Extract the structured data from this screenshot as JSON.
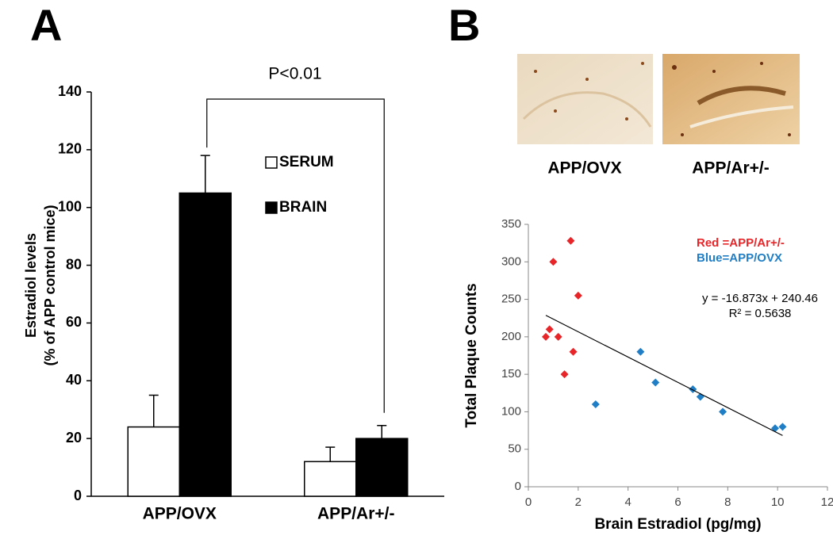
{
  "chart_data": [
    {
      "type": "bar",
      "panel": "A",
      "ylabel": [
        "Estradiol levels",
        "(% of APP control mice)"
      ],
      "categories": [
        "APP/OVX",
        "APP/Ar+/-"
      ],
      "series": [
        {
          "name": "SERUM",
          "color": "#ffffff",
          "values": [
            24,
            12
          ],
          "errors": [
            11,
            5
          ]
        },
        {
          "name": "BRAIN",
          "color": "#000000",
          "values": [
            105,
            20
          ],
          "errors": [
            13,
            4.5
          ]
        }
      ],
      "ylim": [
        0,
        140
      ],
      "yticks": [
        0,
        20,
        40,
        60,
        80,
        100,
        120,
        140
      ],
      "annotation": "P<0.01"
    },
    {
      "type": "scatter",
      "panel": "B",
      "image_labels": [
        "APP/OVX",
        "APP/Ar+/-"
      ],
      "xlabel": "Brain Estradiol (pg/mg)",
      "ylabel": "Total Plaque Counts",
      "series": [
        {
          "name": "Red =APP/Ar+/-",
          "color": "#e8262a",
          "x": [
            0.7,
            0.85,
            1.0,
            1.2,
            1.45,
            1.7,
            1.8,
            2.0
          ],
          "values": [
            200,
            210,
            300,
            200,
            150,
            328,
            180,
            255
          ]
        },
        {
          "name": "Blue=APP/OVX",
          "color": "#1f7ec6",
          "x": [
            2.7,
            4.5,
            5.1,
            6.6,
            6.9,
            7.8,
            9.9,
            10.2
          ],
          "values": [
            110,
            180,
            139,
            130,
            120,
            100,
            78,
            80
          ]
        }
      ],
      "trendline": {
        "equation": "y = -16.873x + 240.46",
        "r2_label": "R² = 0.5638",
        "slope": -16.873,
        "intercept": 240.46
      },
      "xlim": [
        0,
        12
      ],
      "xticks": [
        0,
        2,
        4,
        6,
        8,
        10,
        12
      ],
      "ylim": [
        0,
        350
      ],
      "yticks": [
        0,
        50,
        100,
        150,
        200,
        250,
        300,
        350
      ]
    }
  ]
}
